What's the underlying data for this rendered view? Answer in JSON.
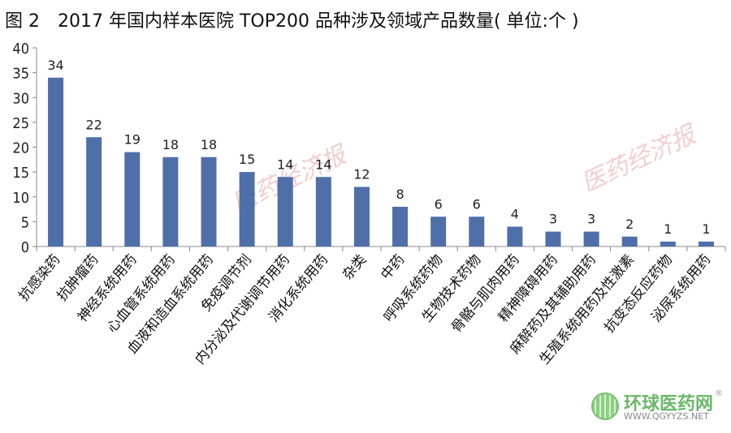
{
  "title": "图 2　2017 年国内样本医院 TOP200 品种涉及领域产品数量( 单位:个 )",
  "watermark": "医药经济报",
  "logo": {
    "cn": "环球医药网",
    "en": "WWW.QGYYZS.NET",
    "registered": "®"
  },
  "chart_data": {
    "type": "bar",
    "title": "图 2　2017 年国内样本医院 TOP200 品种涉及领域产品数量( 单位:个 )",
    "categories": [
      "抗感染药",
      "抗肿瘤药",
      "神经系统用药",
      "心血管系统用药",
      "血液和造血系统用药",
      "免疫调节剂",
      "内分泌及代谢调节用药",
      "消化系统用药",
      "杂类",
      "中药",
      "呼吸系统药物",
      "生物技术药物",
      "骨骼与肌肉用药",
      "精神障碍用药",
      "麻醉药及其辅助用药",
      "生殖系统用药及性激素",
      "抗变态反应药物",
      "泌尿系统用药"
    ],
    "values": [
      34,
      22,
      19,
      18,
      18,
      15,
      14,
      14,
      12,
      8,
      6,
      6,
      4,
      3,
      3,
      2,
      1,
      1
    ],
    "ylim": [
      0,
      40
    ],
    "yticks": [
      0,
      5,
      10,
      15,
      20,
      25,
      30,
      35,
      40
    ],
    "grid": false,
    "bar_color": "#4f6fa8",
    "data_labels": true
  }
}
